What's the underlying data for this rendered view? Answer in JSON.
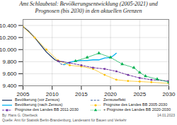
{
  "chart_data": {
    "type": "line",
    "title": "Amt Schlaubetal: Bevölkerungsentwicklung (2005-2021) und\nPrognosen (bis 2030) in den aktuellen Grenzen",
    "xlim": [
      2005,
      2030
    ],
    "xticks": [
      2005,
      2010,
      2015,
      2020,
      2025,
      2030
    ],
    "ylim": [
      9400,
      10500
    ],
    "yticks": [
      {
        "value": 9400,
        "label": "9.400"
      },
      {
        "value": 9600,
        "label": "9.600"
      },
      {
        "value": 9800,
        "label": "9.800"
      },
      {
        "value": 10000,
        "label": "10.000"
      },
      {
        "value": 10200,
        "label": "10.200"
      },
      {
        "value": 10400,
        "label": "10.400"
      }
    ],
    "grid": true,
    "legend": "lower left",
    "annotations": [
      "By: Hans G. Oberbeck",
      "Quelle: Amt für Statistik Berlin-Brandenburg, Landesamt für Bauen und Verkehr",
      "14.01.2023"
    ],
    "series": [
      {
        "name": "Bevölkerung (vor Zensus)",
        "color": "#1f3864",
        "line_style": "solid",
        "x": [
          2005,
          2006,
          2007,
          2008,
          2009,
          2010,
          2010.5,
          2011,
          2011.5,
          2012
        ],
        "values": [
          10380,
          10300,
          10200,
          10080,
          9960,
          9870,
          9830,
          9810,
          9800,
          9800
        ]
      },
      {
        "name": "Zensuseffekt",
        "color": "#2f5496",
        "line_style": "dashed",
        "x": [
          2011,
          2011.2,
          2011.5,
          2012
        ],
        "values": [
          9810,
          9790,
          9760,
          9750
        ]
      },
      {
        "name": "Bevölkerung (nach Zensus)",
        "color": "#00b0f0",
        "line_style": "solid",
        "x": [
          2012,
          2013,
          2014,
          2015,
          2016,
          2017,
          2018,
          2019,
          2020,
          2020.5,
          2021
        ],
        "values": [
          9750,
          9790,
          9810,
          9820,
          9820,
          9830,
          9830,
          9860,
          9870,
          9900,
          9940
        ]
      },
      {
        "name": "Prognose des Landes BB 2005-2030",
        "color": "#ffc000",
        "line_style": "dotted",
        "marker": "circle",
        "x": [
          2005,
          2007,
          2009,
          2011,
          2013,
          2015,
          2017,
          2019,
          2021,
          2023,
          2025,
          2027,
          2030
        ],
        "values": [
          10380,
          10200,
          10000,
          9820,
          9740,
          9720,
          9680,
          9580,
          9500,
          9480,
          9470,
          9460,
          9440
        ]
      },
      {
        "name": "Prognose des Landes BB 2011-2030",
        "color": "#7030a0",
        "line_style": "dashed",
        "marker": "square",
        "x": [
          2011,
          2013,
          2015,
          2017,
          2019,
          2021,
          2023,
          2025,
          2027,
          2030
        ],
        "values": [
          9810,
          9780,
          9740,
          9700,
          9680,
          9640,
          9580,
          9530,
          9500,
          9480
        ]
      },
      {
        "name": "+ Prognose des Landes BB 2020-2030",
        "color": "#00b050",
        "line_style": "dotted",
        "marker": "triangle",
        "x": [
          2014,
          2016,
          2018,
          2020,
          2022,
          2024,
          2025,
          2026,
          2028,
          2030
        ],
        "values": [
          9810,
          9870,
          9940,
          9870,
          9760,
          9700,
          9620,
          9560,
          9510,
          9460
        ]
      }
    ]
  }
}
